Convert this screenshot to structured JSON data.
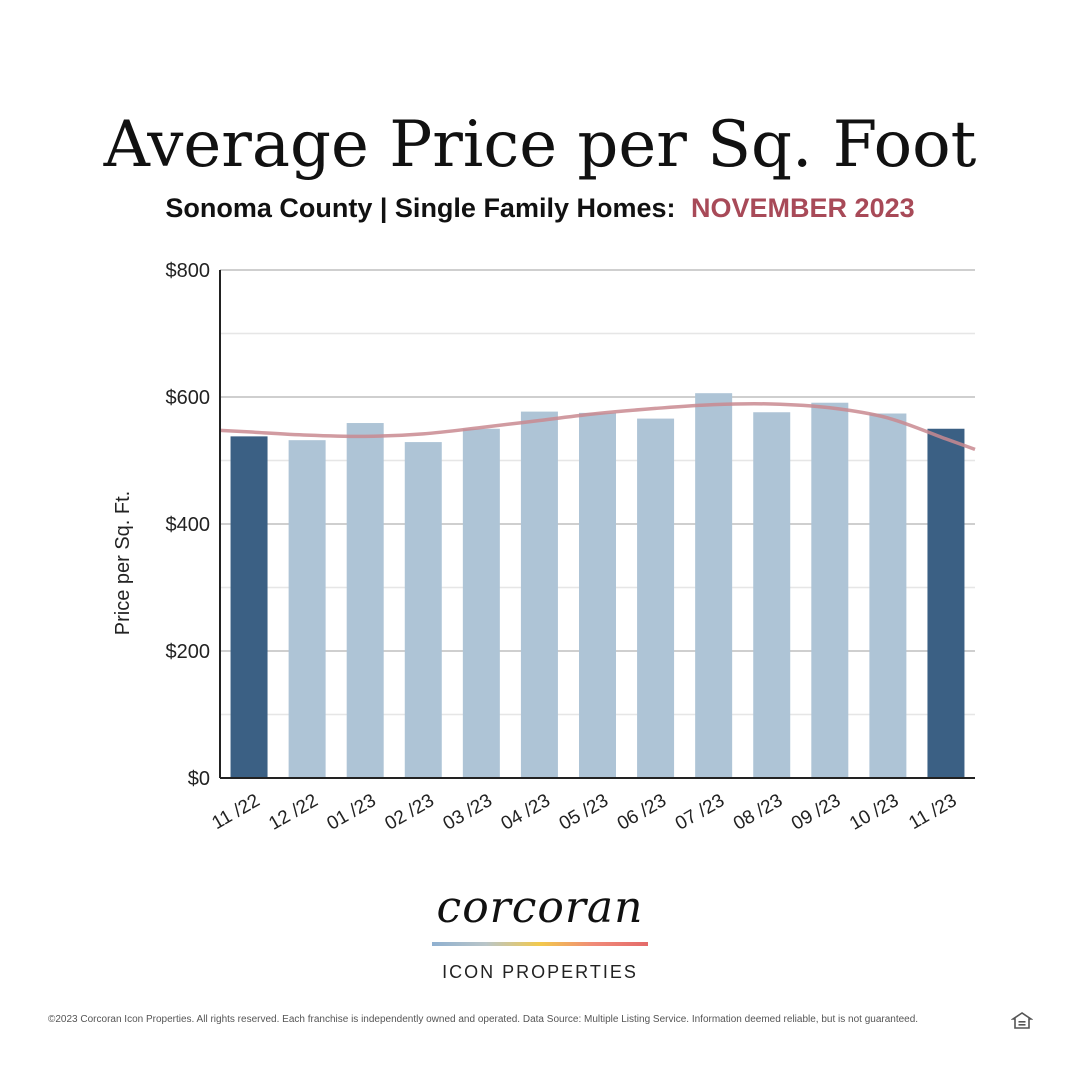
{
  "header": {
    "title": "Average Price per Sq. Foot",
    "subtitle": "Sonoma County | Single Family Homes:",
    "subtitle_accent": "NOVEMBER 2023"
  },
  "colors": {
    "accent": "#a84a58",
    "bar_highlight": "#3b6084",
    "bar_default": "#aec4d6",
    "trend": "#c98a90"
  },
  "chart_data": {
    "type": "bar",
    "categories": [
      "11 /22",
      "12 /22",
      "01 /23",
      "02 /23",
      "03 /23",
      "04 /23",
      "05 /23",
      "06 /23",
      "07 /23",
      "08 /23",
      "09 /23",
      "10 /23",
      "11 /23"
    ],
    "values": [
      538,
      532,
      559,
      529,
      550,
      577,
      575,
      566,
      606,
      576,
      591,
      574,
      550
    ],
    "highlighted": [
      true,
      false,
      false,
      false,
      false,
      false,
      false,
      false,
      false,
      false,
      false,
      false,
      true
    ],
    "trendline": [
      545,
      540,
      538,
      542,
      552,
      563,
      574,
      582,
      588,
      589,
      583,
      567,
      534
    ],
    "ylabel": "Price per Sq. Ft.",
    "ylim": [
      0,
      800
    ],
    "yticks": [
      0,
      200,
      400,
      600,
      800
    ],
    "ytick_labels": [
      "$0",
      "$200",
      "$400",
      "$600",
      "$800"
    ],
    "grid": true
  },
  "logo": {
    "wordmark": "corcoran",
    "subtitle": "ICON PROPERTIES"
  },
  "footer": {
    "disclaimer": "©2023 Corcoran Icon Properties. All rights reserved. Each franchise is independently owned and operated. Data Source: Multiple Listing Service. Information deemed reliable, but is not guaranteed.",
    "icon": "equal-housing-opportunity-icon"
  }
}
